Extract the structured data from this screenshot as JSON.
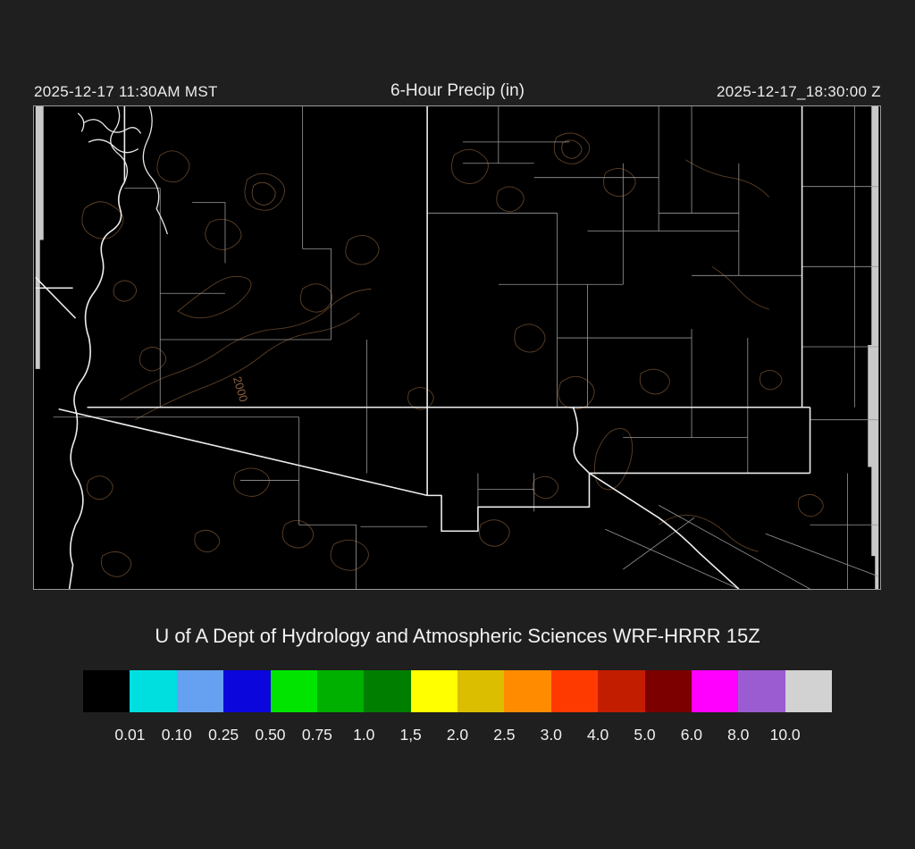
{
  "header": {
    "left_timestamp": "2025-12-17 11:30AM MST",
    "title": "6-Hour Precip (in)",
    "right_timestamp": "2025-12-17_18:30:00 Z"
  },
  "map": {
    "contour_label": "2000"
  },
  "footer": {
    "credit": "U of A Dept of Hydrology and Atmospheric Sciences WRF-HRRR 15Z"
  },
  "colorbar": {
    "colors": [
      "#000000",
      "#00dfdf",
      "#66a0f0",
      "#0a06dc",
      "#00e400",
      "#00b000",
      "#007e00",
      "#ffff00",
      "#dcbe00",
      "#ff8c00",
      "#ff3a00",
      "#c31d00",
      "#7c0000",
      "#ff00ff",
      "#9a5cd0",
      "#d2d2d2"
    ],
    "tick_labels": [
      "0.01",
      "0.10",
      "0.25",
      "0.50",
      "0.75",
      "1.0",
      "1,5",
      "2.0",
      "2.5",
      "3.0",
      "4.0",
      "5.0",
      "6.0",
      "8.0",
      "10.0"
    ]
  }
}
